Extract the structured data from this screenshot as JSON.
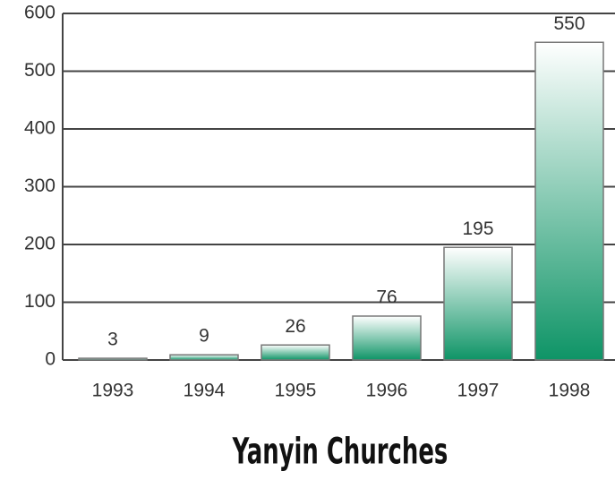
{
  "chart_data": {
    "type": "bar",
    "title": "Yanyin Churches",
    "categories": [
      "1993",
      "1994",
      "1995",
      "1996",
      "1997",
      "1998"
    ],
    "values": [
      3,
      9,
      26,
      76,
      195,
      550
    ],
    "color": "#0e9466",
    "ylim": [
      0,
      600
    ],
    "yticks": [
      0,
      100,
      200,
      300,
      400,
      500,
      600
    ],
    "grid": true
  }
}
